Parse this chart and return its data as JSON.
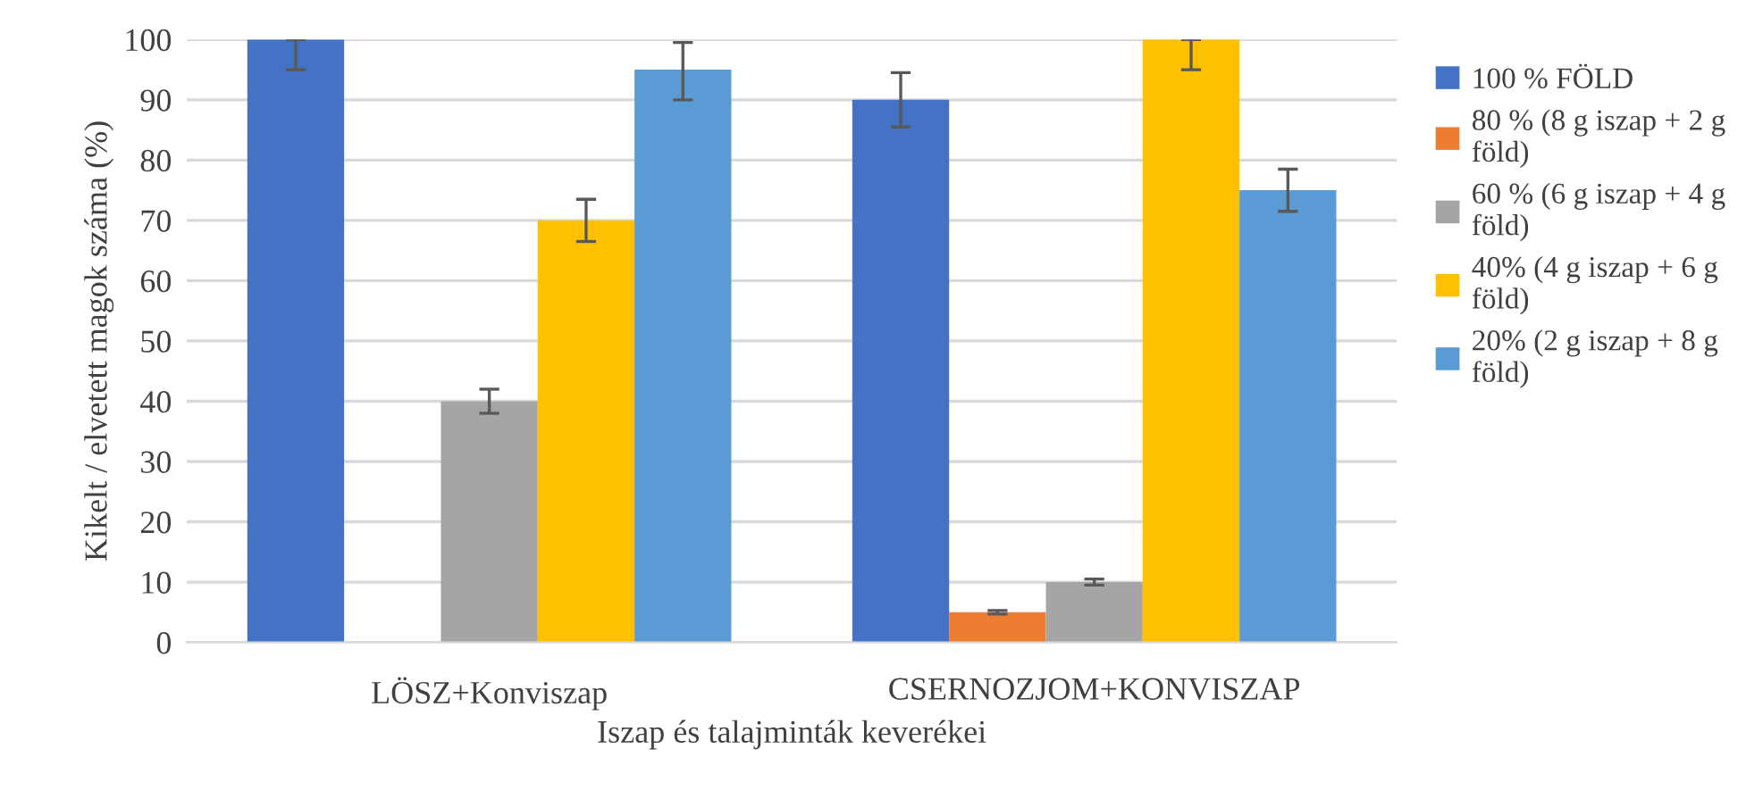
{
  "chart_data": {
    "type": "bar",
    "xlabel": "Iszap és talajminták keverékei",
    "ylabel": "Kikelt / elvetett magok száma (%)",
    "categories": [
      "LÖSZ+Konviszap",
      "CSERNOZJOM+KONVISZAP"
    ],
    "series": [
      {
        "name": "100 % FÖLD",
        "color": "#4472c4",
        "values": [
          100,
          90
        ],
        "errors": [
          [
            95,
            100
          ],
          [
            85.5,
            94.5
          ]
        ]
      },
      {
        "name": "80 % (8 g iszap + 2 g föld)",
        "color": "#ed7d31",
        "values": [
          null,
          5
        ],
        "errors": [
          null,
          [
            4.7,
            5.3
          ]
        ]
      },
      {
        "name": "60 % (6 g iszap + 4 g föld)",
        "color": "#a5a5a5",
        "values": [
          40,
          10
        ],
        "errors": [
          [
            38,
            42
          ],
          [
            9.5,
            10.5
          ]
        ]
      },
      {
        "name": "40% (4 g iszap + 6 g föld)",
        "color": "#ffc000",
        "values": [
          70,
          100
        ],
        "errors": [
          [
            66.5,
            73.5
          ],
          [
            95,
            100
          ]
        ]
      },
      {
        "name": "20% (2 g iszap + 8 g föld)",
        "color": "#5b9bd5",
        "values": [
          95,
          75
        ],
        "errors": [
          [
            90,
            99.5
          ],
          [
            71.5,
            78.5
          ]
        ]
      }
    ],
    "ylim": [
      0,
      100
    ],
    "yticks": [
      0,
      10,
      20,
      30,
      40,
      50,
      60,
      70,
      80,
      90,
      100
    ],
    "grid": "y",
    "legend": "right"
  }
}
